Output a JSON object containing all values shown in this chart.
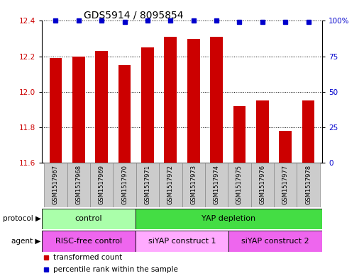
{
  "title": "GDS5914 / 8095854",
  "samples": [
    "GSM1517967",
    "GSM1517968",
    "GSM1517969",
    "GSM1517970",
    "GSM1517971",
    "GSM1517972",
    "GSM1517973",
    "GSM1517974",
    "GSM1517975",
    "GSM1517976",
    "GSM1517977",
    "GSM1517978"
  ],
  "bar_values": [
    12.19,
    12.2,
    12.23,
    12.15,
    12.25,
    12.31,
    12.3,
    12.31,
    11.92,
    11.95,
    11.78,
    11.95
  ],
  "percentile_values": [
    100,
    100,
    100,
    99,
    100,
    100,
    100,
    100,
    99,
    99,
    99,
    99
  ],
  "bar_color": "#cc0000",
  "percentile_color": "#0000cc",
  "ylim_left": [
    11.6,
    12.4
  ],
  "ylim_right": [
    0,
    100
  ],
  "yticks_left": [
    11.6,
    11.8,
    12.0,
    12.2,
    12.4
  ],
  "yticks_right": [
    0,
    25,
    50,
    75,
    100
  ],
  "ytick_right_labels": [
    "0",
    "25",
    "50",
    "75",
    "100%"
  ],
  "protocol_groups": [
    {
      "label": "control",
      "start": 0,
      "end": 4,
      "color": "#aaffaa"
    },
    {
      "label": "YAP depletion",
      "start": 4,
      "end": 12,
      "color": "#44dd44"
    }
  ],
  "agent_groups": [
    {
      "label": "RISC-free control",
      "start": 0,
      "end": 4,
      "color": "#ee66ee"
    },
    {
      "label": "siYAP construct 1",
      "start": 4,
      "end": 8,
      "color": "#ffaaff"
    },
    {
      "label": "siYAP construct 2",
      "start": 8,
      "end": 12,
      "color": "#ee66ee"
    }
  ],
  "legend_items": [
    {
      "label": "transformed count",
      "color": "#cc0000"
    },
    {
      "label": "percentile rank within the sample",
      "color": "#0000cc"
    }
  ],
  "bar_width": 0.55,
  "title_fontsize": 10,
  "tick_fontsize": 7.5,
  "label_fontsize": 8,
  "sample_fontsize": 6,
  "group_fontsize": 8,
  "background_color": "#ffffff",
  "xlabels_box_color": "#cccccc",
  "xlabels_box_edge": "#888888"
}
